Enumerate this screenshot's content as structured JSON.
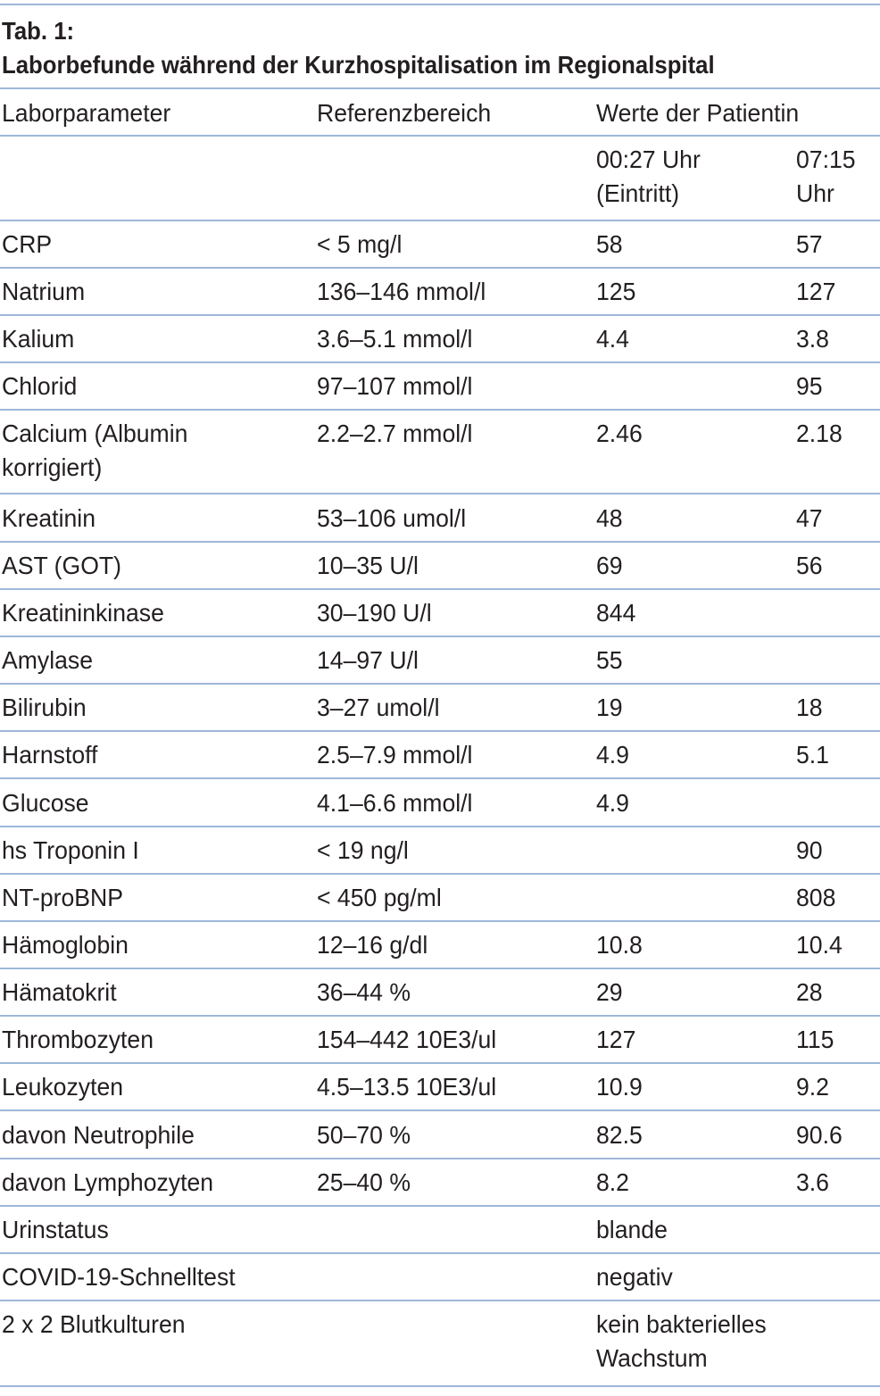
{
  "caption": {
    "label": "Tab. 1:",
    "title": "Laborbefunde während der Kurzhospitalisation im Regionalspital"
  },
  "header": {
    "parameter": "Laborparameter",
    "reference": "Referenzbereich",
    "values": "Werte der Patientin",
    "time1_line1": "00:27 Uhr",
    "time1_line2": "(Eintritt)",
    "time2_line1": "07:15",
    "time2_line2": "Uhr"
  },
  "rows": [
    {
      "param": "CRP",
      "ref": "< 5 mg/l",
      "v1": "58",
      "v2": "57"
    },
    {
      "param": "Natrium",
      "ref": "136–146 mmol/l",
      "v1": "125",
      "v2": "127"
    },
    {
      "param": "Kalium",
      "ref": "3.6–5.1 mmol/l",
      "v1": "4.4",
      "v2": "3.8"
    },
    {
      "param": "Chlorid",
      "ref": "97–107 mmol/l",
      "v1": "",
      "v2": "95"
    },
    {
      "param": "Calcium (Albumin",
      "param2": "korrigiert)",
      "ref": "2.2–2.7 mmol/l",
      "v1": "2.46",
      "v2": "2.18"
    },
    {
      "param": "Kreatinin",
      "ref": "53–106 umol/l",
      "v1": "48",
      "v2": "47"
    },
    {
      "param": "AST (GOT)",
      "ref": "10–35 U/l",
      "v1": "69",
      "v2": "56"
    },
    {
      "param": "Kreatininkinase",
      "ref": "30–190 U/l",
      "v1": "844",
      "v2": ""
    },
    {
      "param": "Amylase",
      "ref": "14–97 U/l",
      "v1": "55",
      "v2": ""
    },
    {
      "param": "Bilirubin",
      "ref": "3–27 umol/l",
      "v1": "19",
      "v2": "18"
    },
    {
      "param": "Harnstoff",
      "ref": "2.5–7.9 mmol/l",
      "v1": "4.9",
      "v2": "5.1"
    },
    {
      "param": "Glucose",
      "ref": "4.1–6.6 mmol/l",
      "v1": "4.9",
      "v2": ""
    },
    {
      "param": "hs Troponin I",
      "ref": "< 19 ng/l",
      "v1": "",
      "v2": "90"
    },
    {
      "param": "NT-proBNP",
      "ref": "< 450 pg/ml",
      "v1": "",
      "v2": "808"
    },
    {
      "param": "Hämoglobin",
      "ref": "12–16 g/dl",
      "v1": "10.8",
      "v2": "10.4"
    },
    {
      "param": "Hämatokrit",
      "ref": "36–44 %",
      "v1": "29",
      "v2": "28"
    },
    {
      "param": "Thrombozyten",
      "ref": "154–442 10E3/ul",
      "v1": "127",
      "v2": "115"
    },
    {
      "param": "Leukozyten",
      "ref": "4.5–13.5 10E3/ul",
      "v1": "10.9",
      "v2": "9.2"
    },
    {
      "param": "davon Neutrophile",
      "ref": "50–70 %",
      "v1": "82.5",
      "v2": "90.6"
    },
    {
      "param": "davon Lymphozyten",
      "ref": "25–40 %",
      "v1": "8.2",
      "v2": "3.6"
    },
    {
      "param": "Urinstatus",
      "ref": "",
      "v1": "blande",
      "v2": ""
    },
    {
      "param": "COVID-19-Schnelltest",
      "ref": "",
      "v1": "negativ",
      "v2": ""
    },
    {
      "param": "2 x 2 Blutkulturen",
      "ref": "",
      "v1": "kein bakterielles",
      "v1b": "Wachstum",
      "v2": ""
    }
  ]
}
